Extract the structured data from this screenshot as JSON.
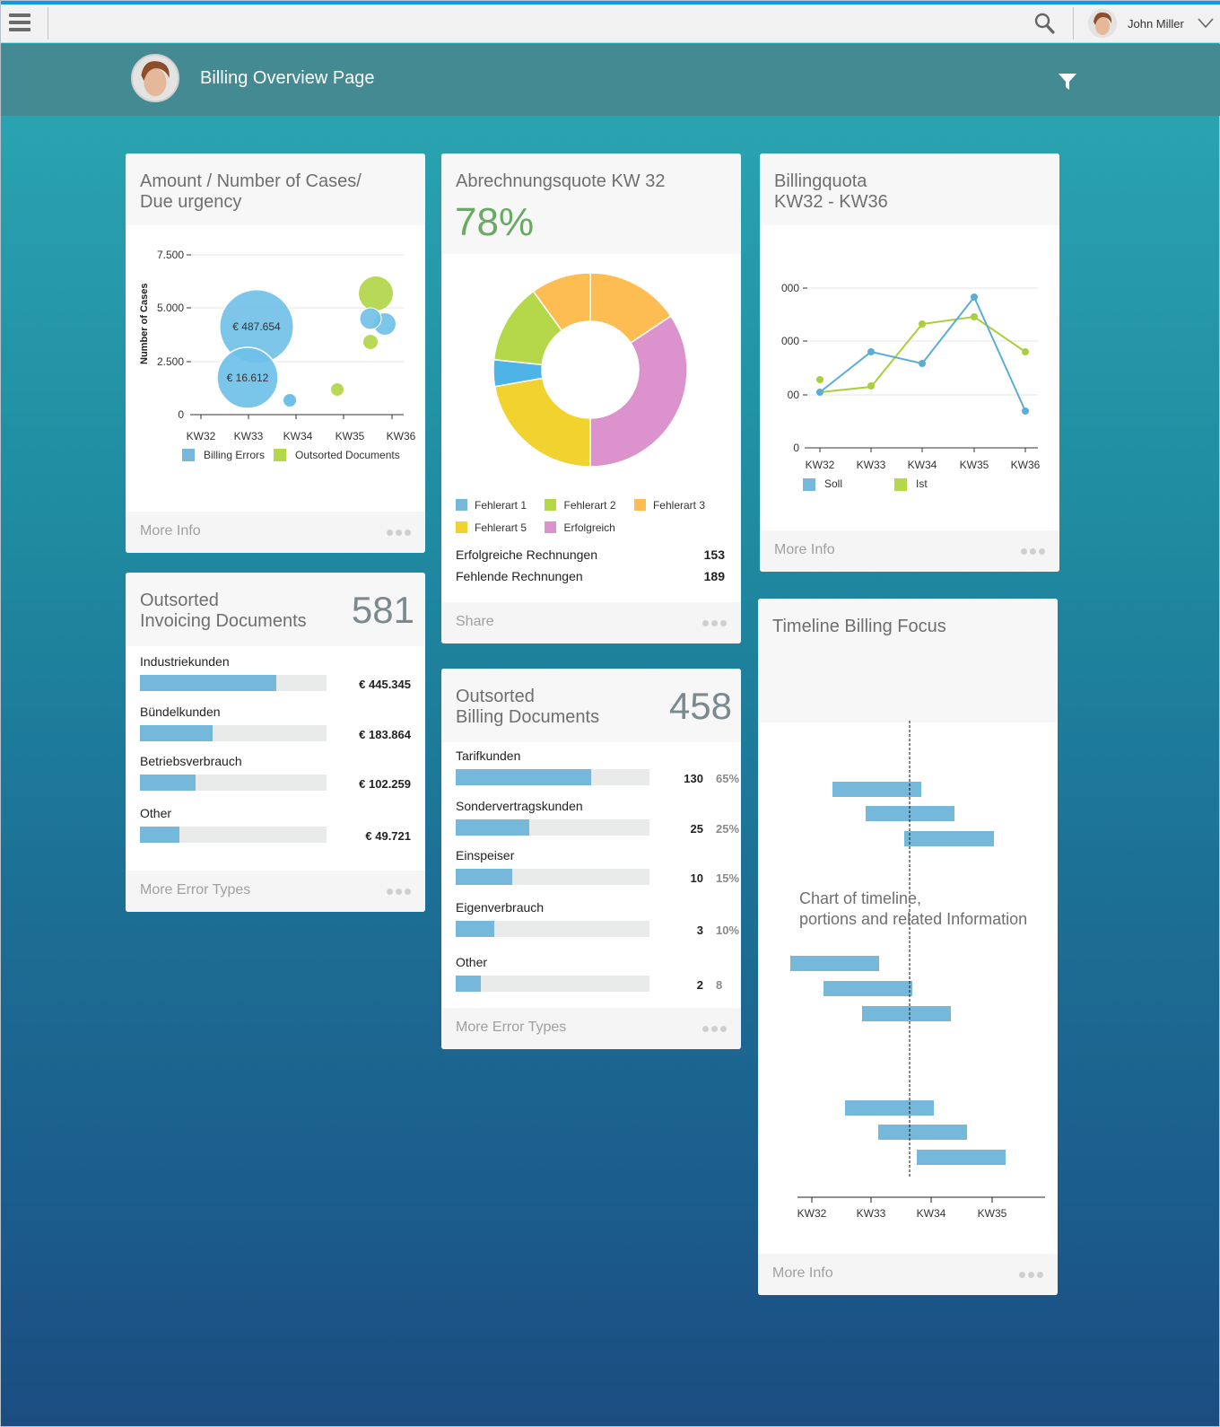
{
  "shell": {
    "menu_icon": "hamburger-icon",
    "search_icon": "search-icon",
    "user_name": "John Miller",
    "user_menu_icon": "chevron-down-icon"
  },
  "header": {
    "title": "Billing Overview Page",
    "filter_icon": "filter-icon"
  },
  "cards": {
    "bubble": {
      "title_line1": "Amount / Number of Cases/",
      "title_line2": "Due urgency",
      "footer_link": "More Info",
      "bubble_labels": [
        "€ 487.654",
        "€ 16.612"
      ]
    },
    "donut": {
      "title": "Abrechnungsquote KW 32",
      "kpi": "78%",
      "stats": [
        {
          "label": "Erfolgreiche Rechnungen",
          "value": "153"
        },
        {
          "label": "Fehlende Rechnungen",
          "value": "189"
        }
      ],
      "footer_link": "Share"
    },
    "line": {
      "title_line1": "Billingquota",
      "title_line2": "KW32 - KW36",
      "footer_link": "More Info"
    },
    "invoicing": {
      "title_line1": "Outsorted",
      "title_line2": "Invoicing Documents",
      "kpi": "581",
      "rows": [
        {
          "label": "Industriekunden",
          "value": "€ 445.345",
          "fill": 73
        },
        {
          "label": "Bündelkunden",
          "value": "€ 183.864",
          "fill": 39
        },
        {
          "label": "Betriebsverbrauch",
          "value": "€ 102.259",
          "fill": 30
        },
        {
          "label": "Other",
          "value": "€ 49.721",
          "fill": 21
        }
      ],
      "footer_link": "More Error Types"
    },
    "billing": {
      "title_line1": "Outsorted",
      "title_line2": "Billing Documents",
      "kpi": "458",
      "rows": [
        {
          "label": "Tarifkunden",
          "count": "130",
          "pct": "65%",
          "fill": 70
        },
        {
          "label": "Sondervertragskunden",
          "count": "25",
          "pct": "25%",
          "fill": 38
        },
        {
          "label": "Einspeiser",
          "count": "10",
          "pct": "15%",
          "fill": 29
        },
        {
          "label": "Eigenverbrauch",
          "count": "3",
          "pct": "10%",
          "fill": 20
        },
        {
          "label": "Other",
          "count": "2",
          "pct": "8",
          "fill": 13
        }
      ],
      "footer_link": "More Error Types"
    },
    "timeline": {
      "title": "Timeline Billing Focus",
      "overlay_line1": "Chart of timeline,",
      "overlay_line2": "portions and related Information",
      "footer_link": "More Info"
    }
  },
  "colors": {
    "blue": "#75b8da",
    "green": "#b5d84a",
    "orange": "#fdbd53",
    "yellow": "#f2d22e",
    "pink": "#dc92cc",
    "kpi_green": "#6aaa64",
    "header_teal": "#438a92",
    "shell_accent": "#0a9ee0"
  },
  "chart_data": [
    {
      "type": "scatter",
      "title": "Amount / Number of Cases/ Due urgency",
      "xlabel": "",
      "ylabel": "Number of Cases",
      "categories": [
        "KW32",
        "KW33",
        "KW34",
        "KW35",
        "KW36"
      ],
      "yticks": [
        "0",
        "2.500",
        "5.000",
        "7.500"
      ],
      "ylim": [
        0,
        7500
      ],
      "grid": true,
      "legend": [
        "Billing Errors",
        "Outsorted Documents"
      ],
      "legend_position": "bottom",
      "series": [
        {
          "name": "Billing Errors",
          "points": [
            {
              "x": 33.2,
              "y": 4150,
              "size": 487654,
              "label": "€ 487.654"
            },
            {
              "x": 33.0,
              "y": 1800,
              "size": 16612,
              "label": "€ 16.612"
            },
            {
              "x": 33.9,
              "y": 650,
              "size": "small"
            },
            {
              "x": 35.4,
              "y": 4500,
              "size": "small"
            },
            {
              "x": 35.7,
              "y": 4250,
              "size": "small"
            }
          ]
        },
        {
          "name": "Outsorted Documents",
          "points": [
            {
              "x": 34.9,
              "y": 1150,
              "size": "small"
            },
            {
              "x": 35.5,
              "y": 5650,
              "size": "medium"
            },
            {
              "x": 35.45,
              "y": 3600,
              "size": "small"
            }
          ]
        }
      ]
    },
    {
      "type": "pie",
      "subtype": "donut",
      "title": "Abrechnungsquote KW 32",
      "categories": [
        "Fehlerart 1",
        "Fehlerart 2",
        "Fehlerart 3",
        "Fehlerart 5",
        "Erfolgreich"
      ],
      "values": [
        4,
        12,
        25,
        22,
        37
      ],
      "legend_position": "bottom"
    },
    {
      "type": "line",
      "title": "Billingquota KW32 - KW36",
      "categories": [
        "KW32",
        "KW33",
        "KW34",
        "KW35",
        "KW36"
      ],
      "yticks": [
        "0",
        "00",
        "000",
        "000"
      ],
      "grid": true,
      "legend_position": "bottom",
      "series": [
        {
          "name": "Soll",
          "values": [
            1.05,
            1.8,
            1.6,
            2.85,
            0.7
          ]
        },
        {
          "name": "Ist",
          "values": [
            1.3,
            1.2,
            2.3,
            2.5,
            1.8
          ]
        }
      ]
    },
    {
      "type": "bar",
      "subtype": "gantt",
      "title": "Timeline Billing Focus",
      "categories": [
        "KW32",
        "KW33",
        "KW34",
        "KW35"
      ],
      "reference_line": 33.65,
      "bars": [
        {
          "start": 32.35,
          "end": 33.8
        },
        {
          "start": 32.9,
          "end": 34.35
        },
        {
          "start": 33.55,
          "end": 35.0
        },
        {
          "start": 31.6,
          "end": 33.1
        },
        {
          "start": 32.2,
          "end": 33.65
        },
        {
          "start": 32.85,
          "end": 34.3
        },
        {
          "start": 32.55,
          "end": 34.0
        },
        {
          "start": 33.1,
          "end": 34.55
        },
        {
          "start": 33.75,
          "end": 35.2
        }
      ]
    }
  ]
}
